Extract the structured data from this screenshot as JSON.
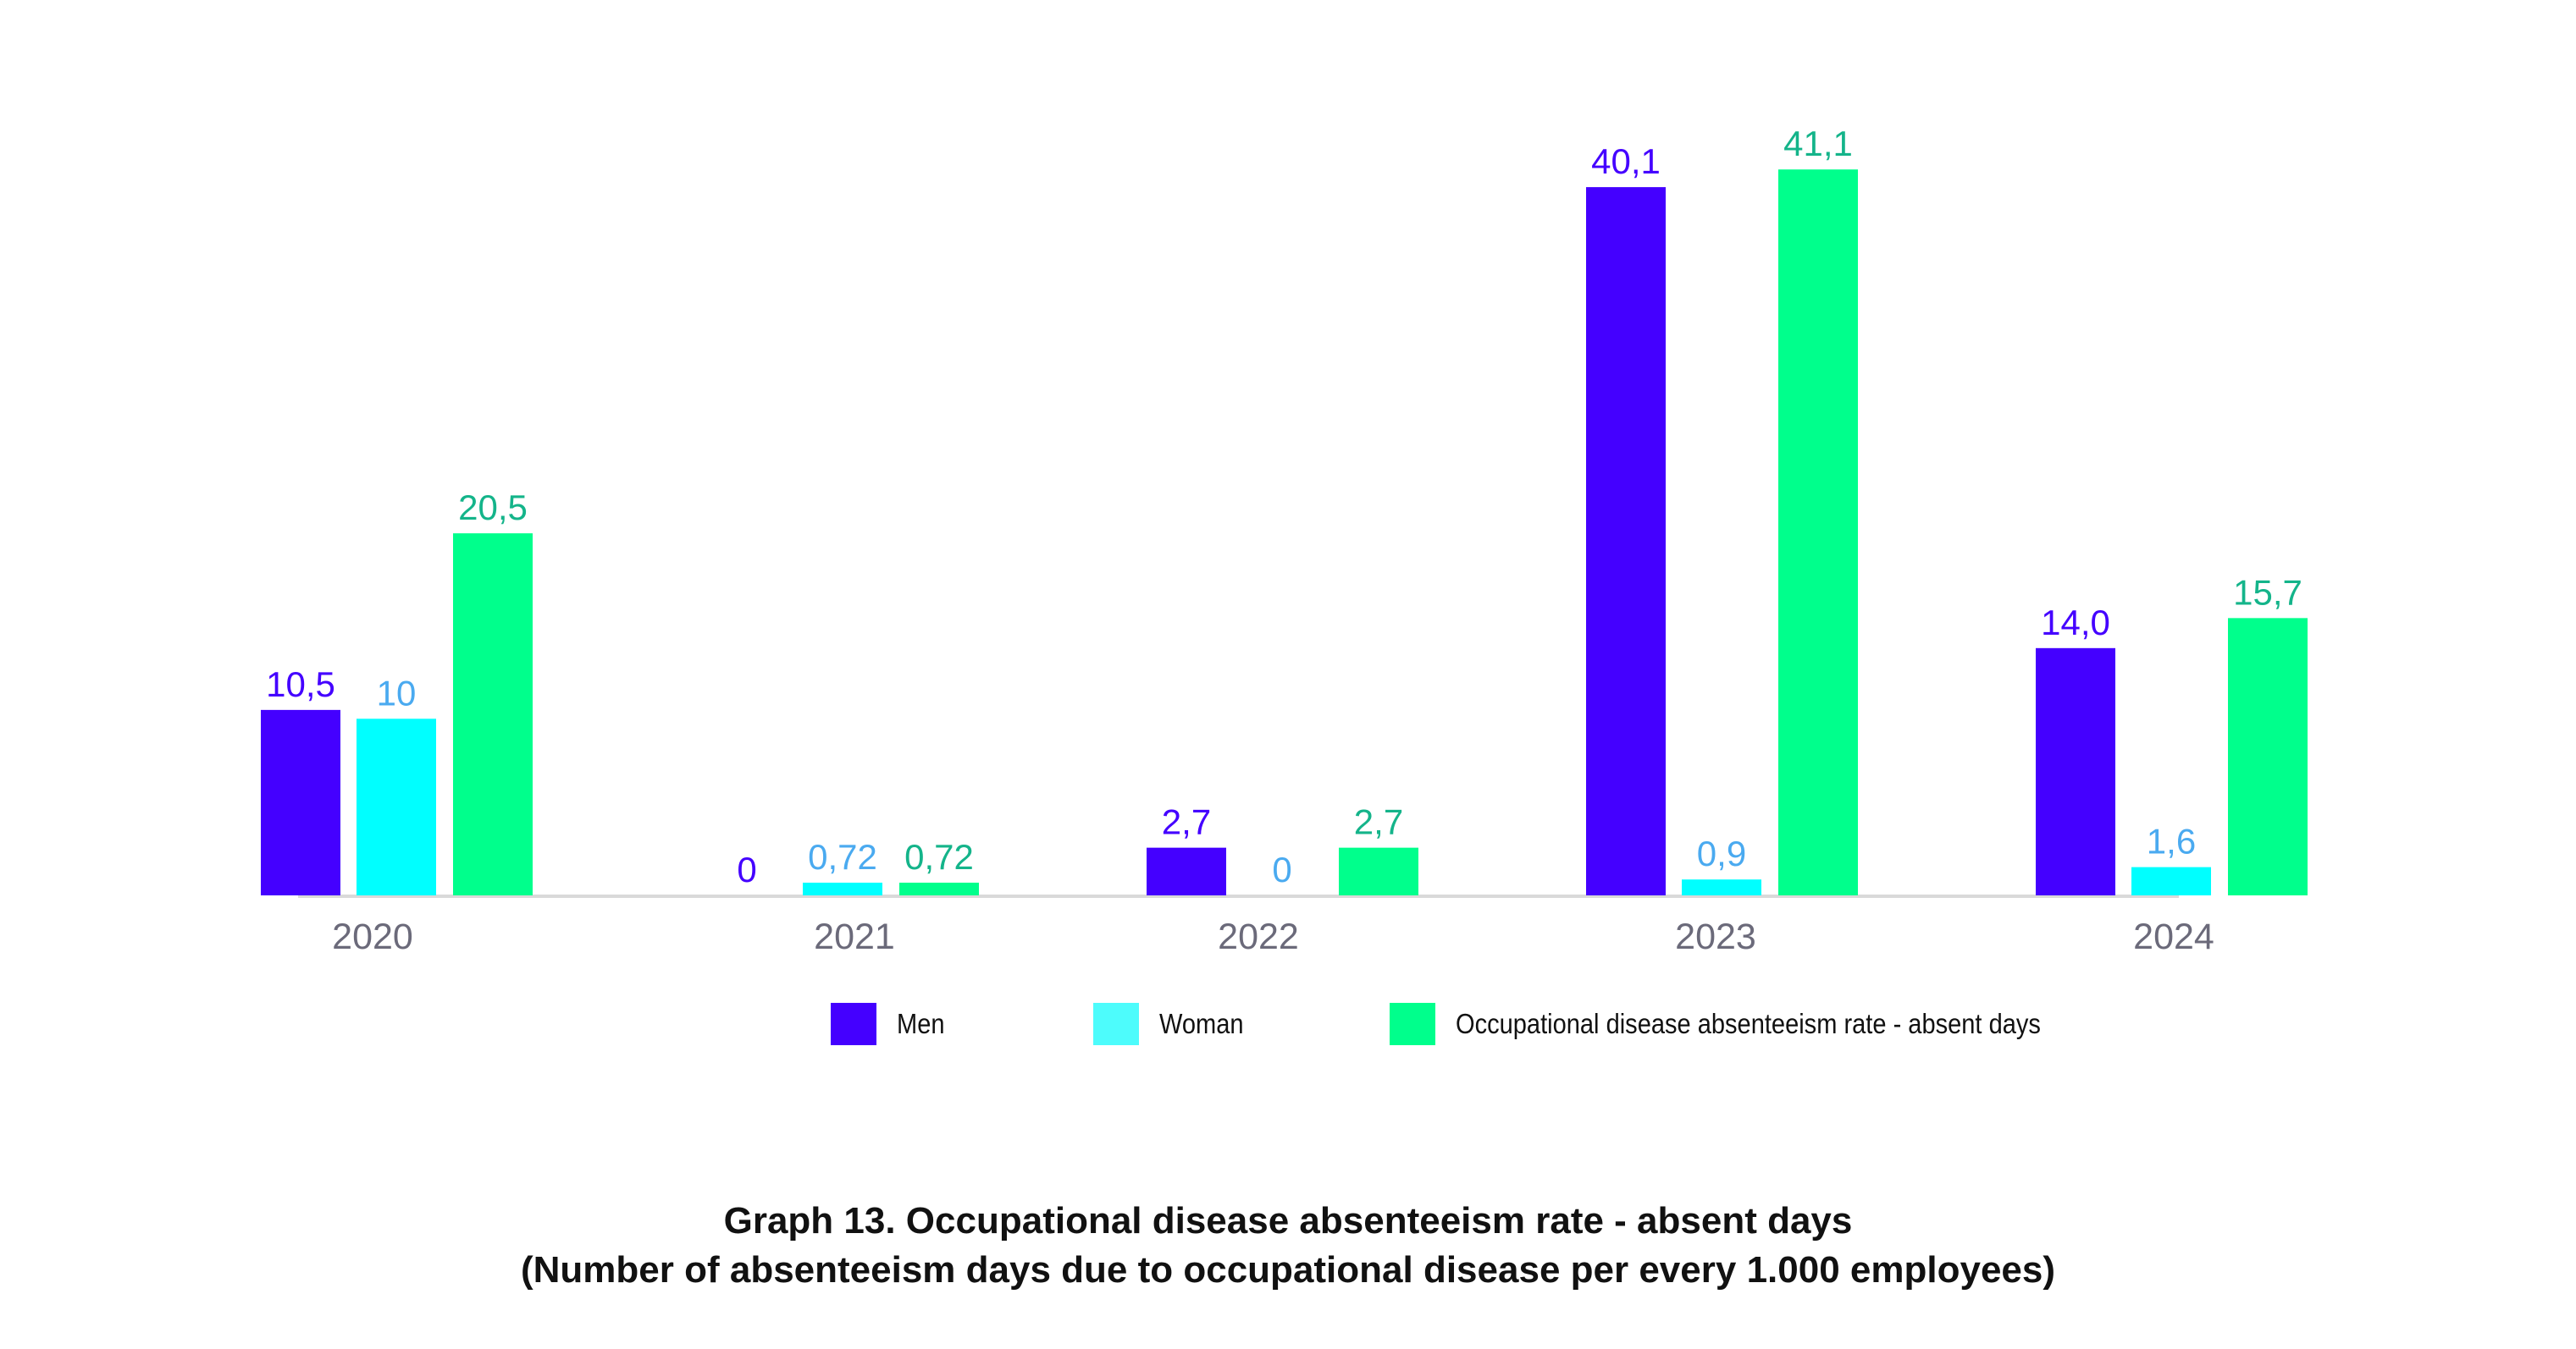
{
  "chart_data": {
    "type": "bar",
    "title": "Graph 13.  Occupational disease absenteeism rate - absent days",
    "subtitle": "(Number of absenteeism days due to occupational disease per every 1.000 employees)",
    "xlabel": "",
    "ylabel": "",
    "ylim": [
      0,
      45
    ],
    "grid": false,
    "legend_position": "bottom",
    "categories": [
      "2020",
      "2021",
      "2022",
      "2023",
      "2024"
    ],
    "series": [
      {
        "name": "Men",
        "color": "#4400ff",
        "label_color": "#4400ff",
        "legend_color": "#4400ff",
        "values": [
          10.5,
          0,
          2.7,
          40.1,
          14.0
        ],
        "labels": [
          "10,5",
          "0",
          "2,7",
          "40,1",
          "14,0"
        ]
      },
      {
        "name": "Woman",
        "color": "#00ffff",
        "label_color": "#4aaaf0",
        "legend_color": "#4dfcfc",
        "values": [
          10,
          0.72,
          0,
          0.9,
          1.6
        ],
        "labels": [
          "10",
          "0,72",
          "0",
          "0,9",
          "1,6"
        ]
      },
      {
        "name": "Occupational disease absenteeism rate - absent days",
        "color": "#00ff8c",
        "label_color": "#14b48a",
        "legend_color": "#00ff8c",
        "values": [
          20.5,
          0.72,
          2.7,
          41.1,
          15.7
        ],
        "labels": [
          "20,5",
          "0,72",
          "2,7",
          "41,1",
          "15,7"
        ]
      }
    ],
    "axis_color": "#d9d9d9",
    "tick_color": "#6b6a7a"
  }
}
